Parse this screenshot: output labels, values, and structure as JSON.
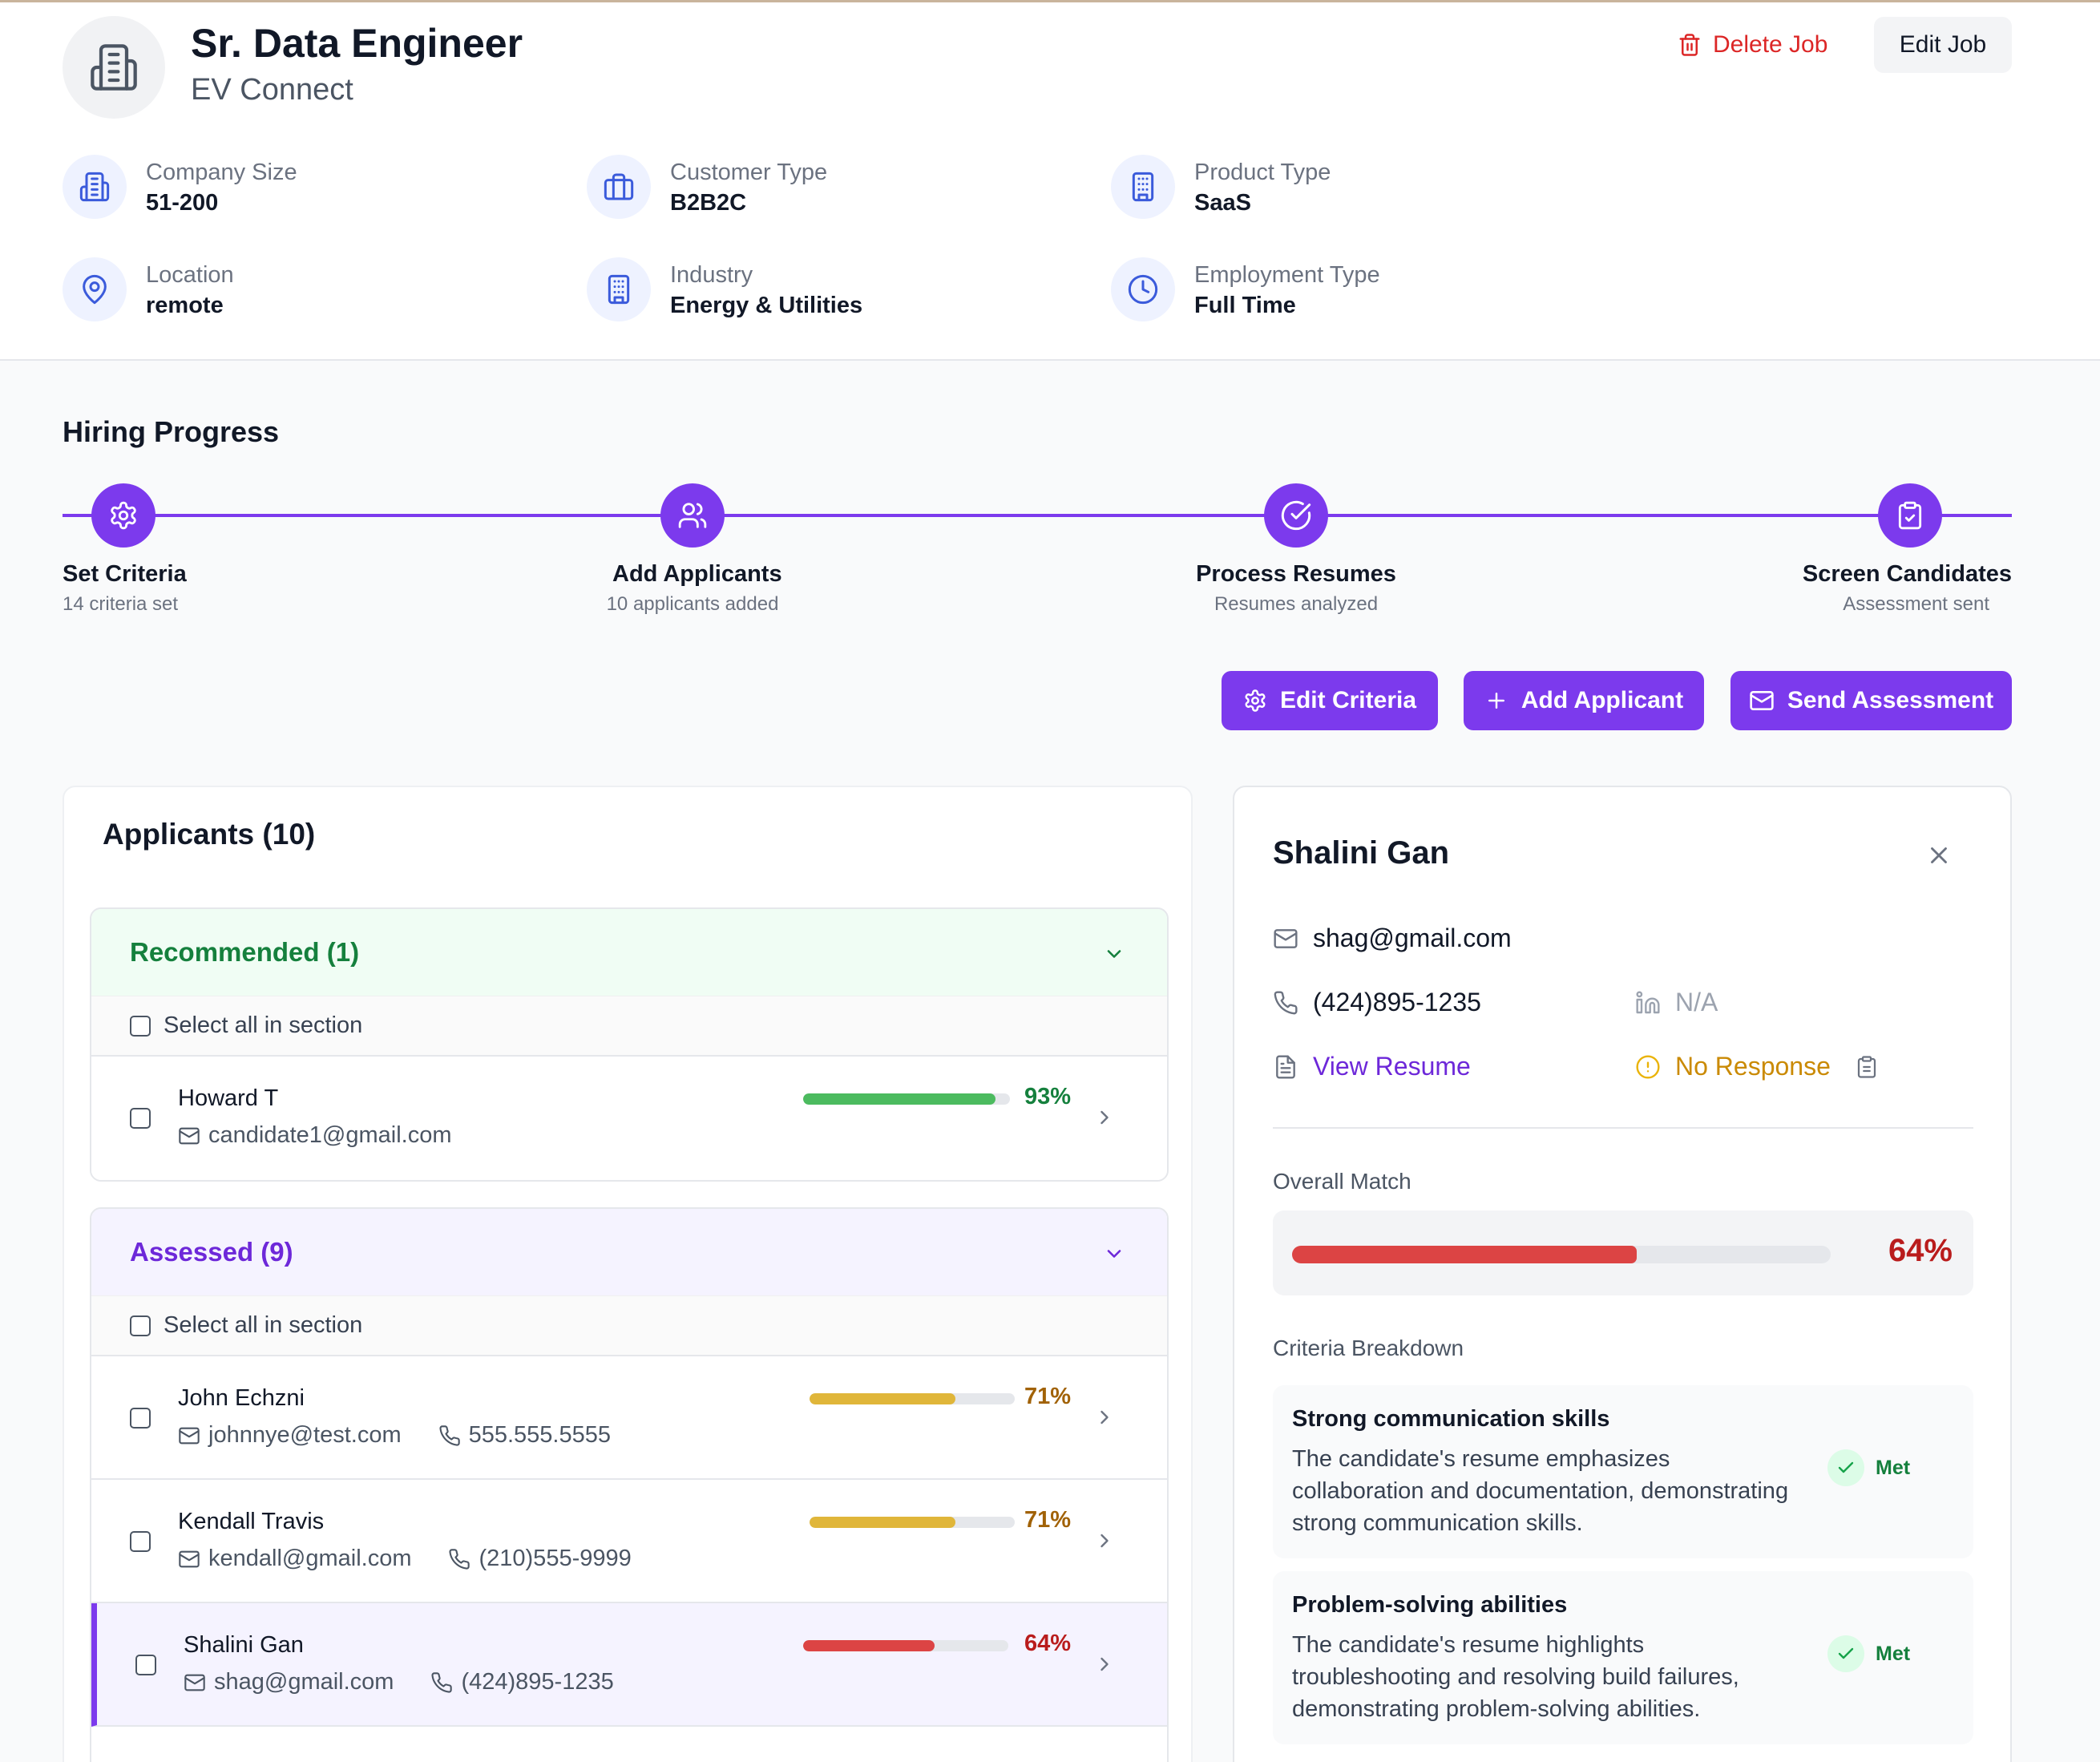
{
  "job": {
    "title": "Sr. Data Engineer",
    "company": "EV Connect",
    "delete_label": "Delete Job",
    "edit_label": "Edit Job",
    "meta": [
      {
        "label": "Company Size",
        "value": "51-200",
        "icon": "building-icon"
      },
      {
        "label": "Customer Type",
        "value": "B2B2C",
        "icon": "briefcase-icon"
      },
      {
        "label": "Product Type",
        "value": "SaaS",
        "icon": "office-building-icon"
      },
      {
        "label": "Location",
        "value": "remote",
        "icon": "map-pin-icon"
      },
      {
        "label": "Industry",
        "value": "Energy & Utilities",
        "icon": "office-building-icon"
      },
      {
        "label": "Employment Type",
        "value": "Full Time",
        "icon": "clock-icon"
      }
    ]
  },
  "progress": {
    "title": "Hiring Progress",
    "steps": [
      {
        "title": "Set Criteria",
        "sub": "14 criteria set",
        "icon": "gear-icon"
      },
      {
        "title": "Add Applicants",
        "sub": "10 applicants added",
        "icon": "users-icon"
      },
      {
        "title": "Process Resumes",
        "sub": "Resumes analyzed",
        "icon": "check-circle-icon"
      },
      {
        "title": "Screen Candidates",
        "sub": "Assessment sent",
        "icon": "clipboard-check-icon"
      }
    ]
  },
  "actions": {
    "edit_criteria": "Edit Criteria",
    "add_applicant": "Add Applicant",
    "send_assessment": "Send Assessment"
  },
  "applicants": {
    "title": "Applicants (10)",
    "select_all": "Select all in section",
    "recommended": {
      "label": "Recommended (1)",
      "rows": [
        {
          "name": "Howard T",
          "email": "candidate1@gmail.com",
          "phone": "",
          "pct": "93%",
          "score": 93
        }
      ]
    },
    "assessed": {
      "label": "Assessed (9)",
      "rows": [
        {
          "name": "John Echzni",
          "email": "johnnye@test.com",
          "phone": "555.555.5555",
          "pct": "71%",
          "score": 71
        },
        {
          "name": "Kendall Travis",
          "email": "kendall@gmail.com",
          "phone": "(210)555-9999",
          "pct": "71%",
          "score": 71
        },
        {
          "name": "Shalini Gan",
          "email": "shag@gmail.com",
          "phone": "(424)895-1235",
          "pct": "64%",
          "score": 64
        }
      ]
    }
  },
  "detail": {
    "name": "Shalini Gan",
    "email": "shag@gmail.com",
    "phone": "(424)895-1235",
    "linkedin": "N/A",
    "resume_link": "View Resume",
    "status": "No Response",
    "overall_label": "Overall Match",
    "overall_pct": "64%",
    "overall_score": 64,
    "breakdown_label": "Criteria Breakdown",
    "criteria": [
      {
        "title": "Strong communication skills",
        "text": "The candidate's resume emphasizes collaboration and documentation, demonstrating strong communication skills.",
        "status": "Met"
      },
      {
        "title": "Problem-solving abilities",
        "text": "The candidate's resume highlights troubleshooting and resolving build failures, demonstrating problem-solving abilities.",
        "status": "Met"
      }
    ]
  },
  "colors": {
    "accent": "#7c3aed",
    "green": "#4cbb5f",
    "yellow": "#e0b63a",
    "red": "#dc4444",
    "recommended_bg": "#f0fdf4",
    "assessed_bg": "#f5f3ff"
  }
}
